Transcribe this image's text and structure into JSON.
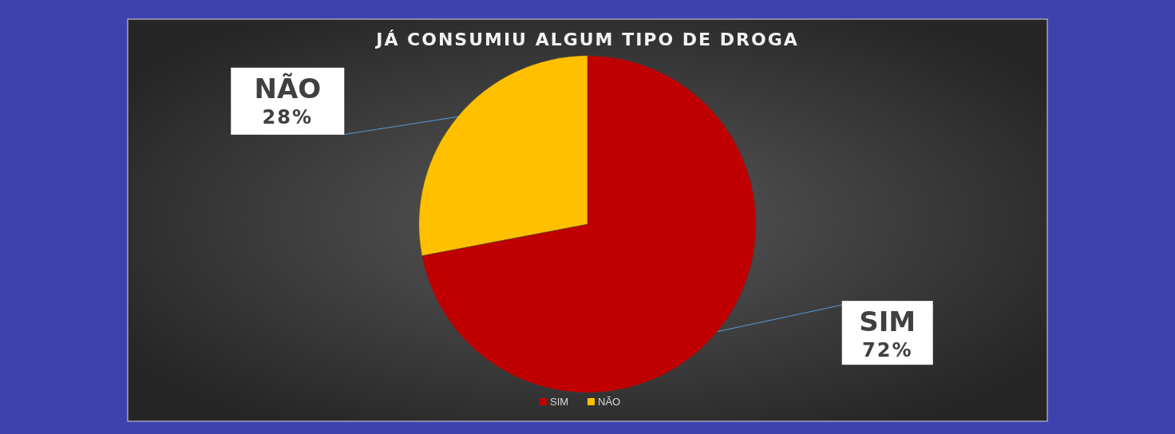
{
  "chart_data": {
    "type": "pie",
    "title": "JÁ CONSUMIU ALGUM TIPO DE DROGA",
    "categories": [
      "SIM",
      "NÃO"
    ],
    "values": [
      72,
      28
    ],
    "colors": [
      "#c00000",
      "#ffc000"
    ],
    "value_labels": [
      "72%",
      "28%"
    ],
    "legend": "bottom"
  }
}
